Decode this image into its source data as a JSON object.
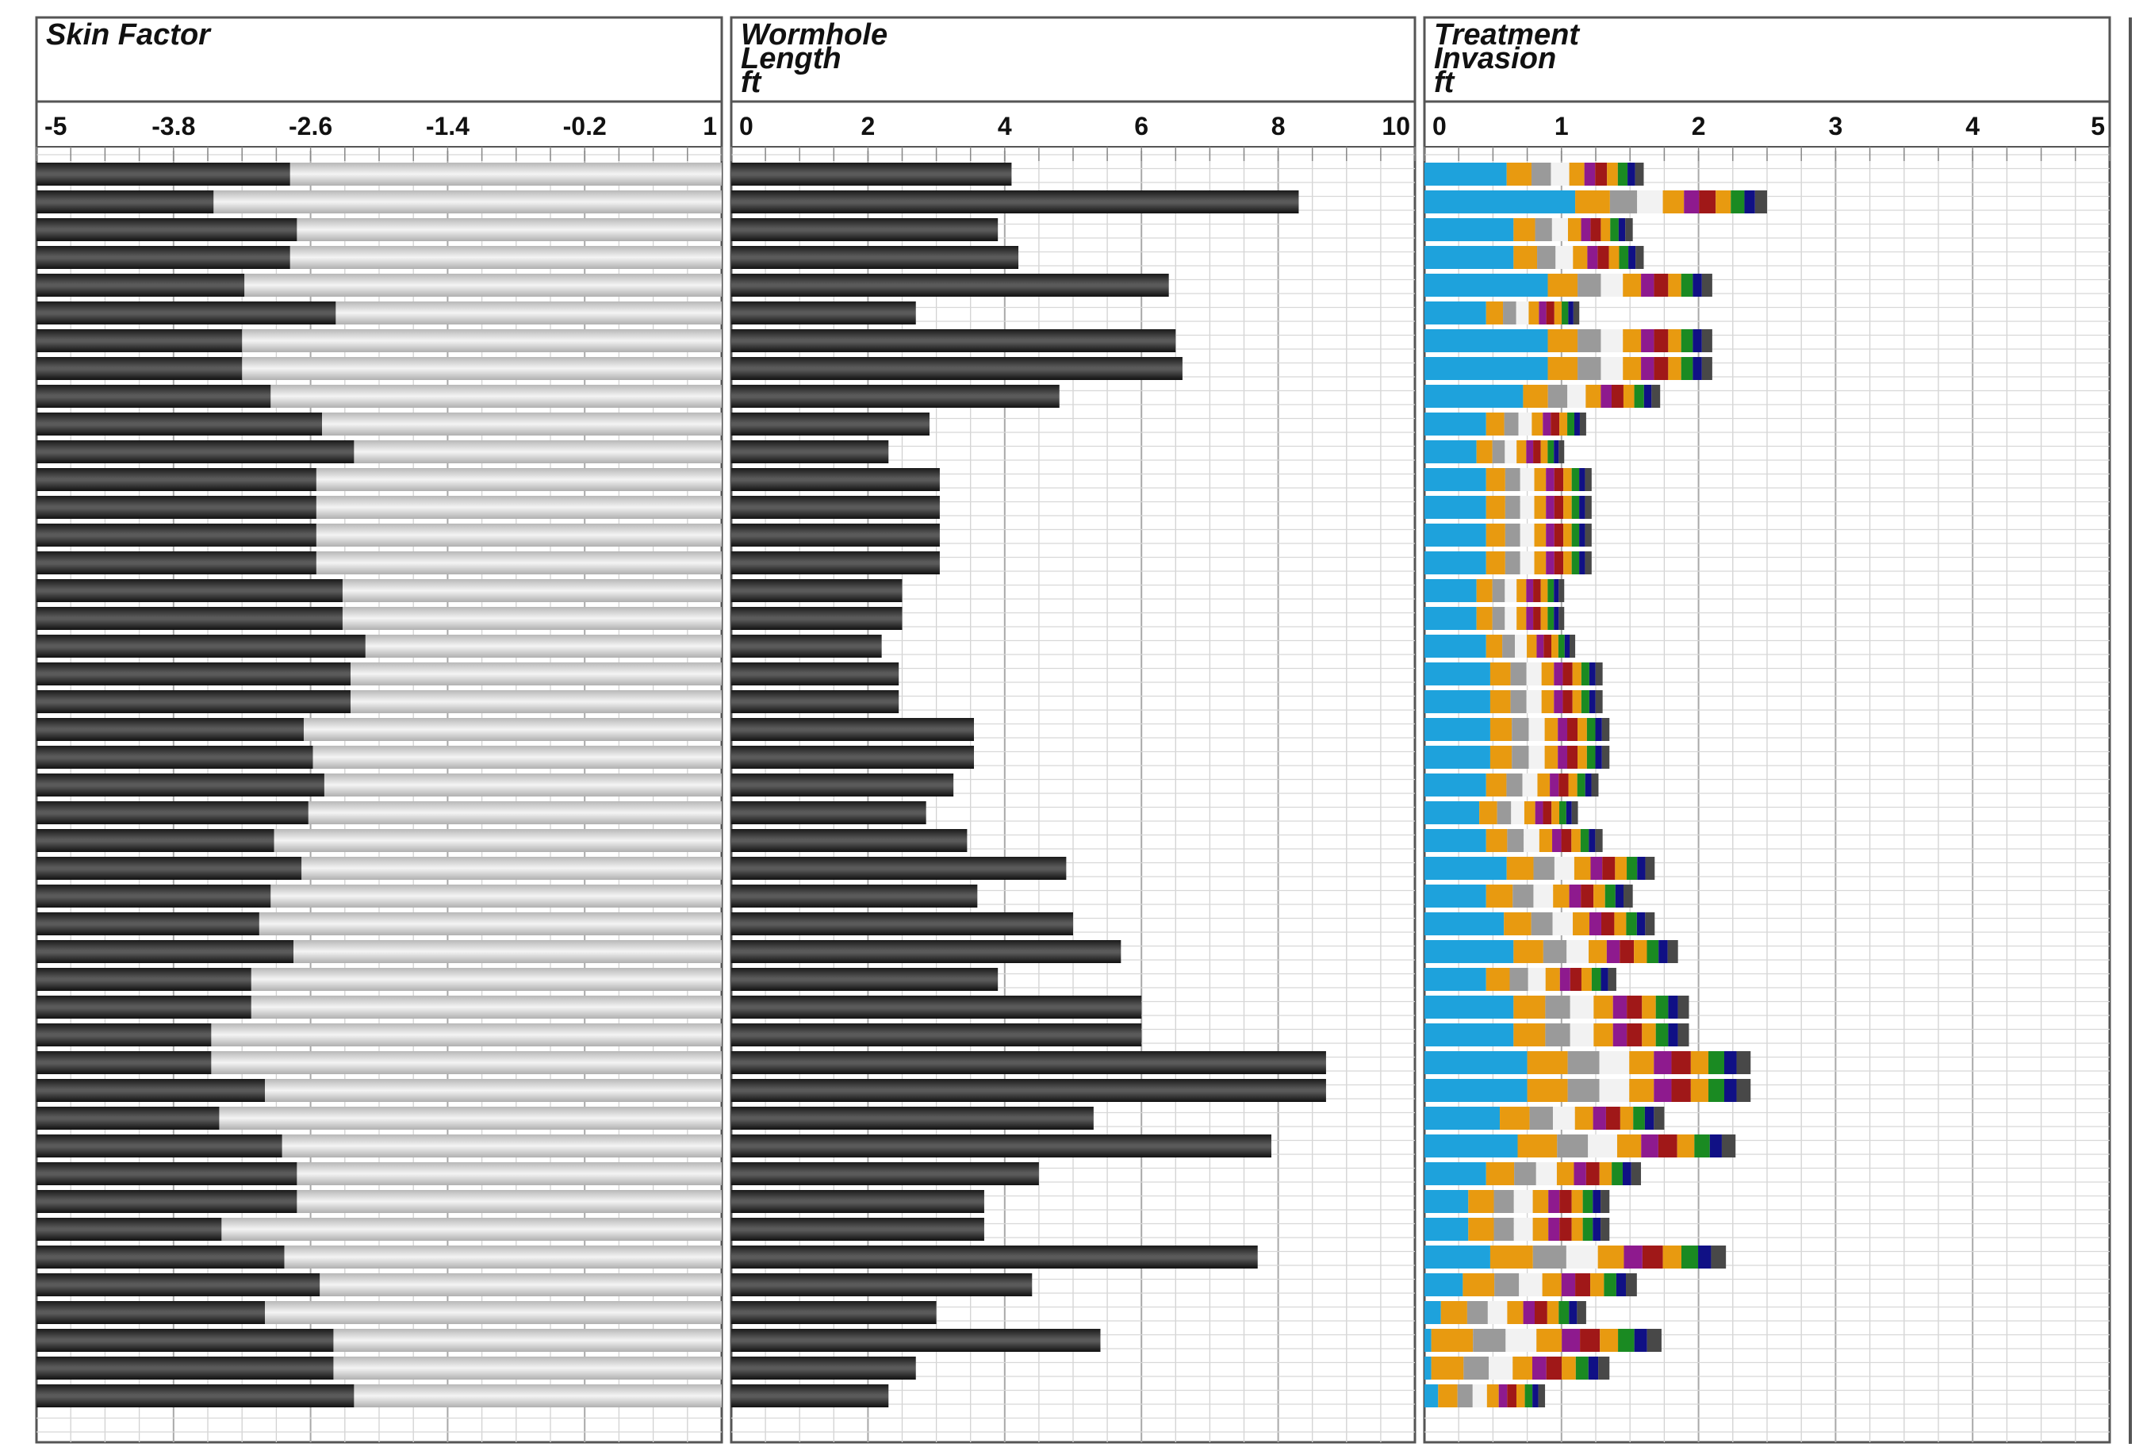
{
  "chart_data": [
    {
      "type": "bar",
      "orientation": "horizontal",
      "title_lines": [
        "Skin Factor"
      ],
      "xlim": [
        -5,
        1
      ],
      "ticks": [
        -5,
        -3.8,
        -2.6,
        -1.4,
        -0.2,
        1
      ],
      "tick_labels": [
        "-5",
        "-3.8",
        "-2.6",
        "-1.4",
        "-0.2",
        "1"
      ],
      "bar_color": "#2a2a2a",
      "background_fill_color": "#d4d4d4",
      "values": [
        -2.78,
        -3.45,
        -2.72,
        -2.78,
        -3.18,
        -2.38,
        -3.2,
        -3.2,
        -2.95,
        -2.5,
        -2.22,
        -2.55,
        -2.55,
        -2.55,
        -2.55,
        -2.32,
        -2.32,
        -2.12,
        -2.25,
        -2.25,
        -2.66,
        -2.58,
        -2.48,
        -2.62,
        -2.92,
        -2.68,
        -2.95,
        -3.05,
        -2.75,
        -3.12,
        -3.12,
        -3.47,
        -3.47,
        -3.0,
        -3.4,
        -2.85,
        -2.72,
        -2.72,
        -3.38,
        -2.83,
        -2.52,
        -3.0,
        -2.4,
        -2.4,
        -2.22
      ]
    },
    {
      "type": "bar",
      "orientation": "horizontal",
      "title_lines": [
        "Wormhole",
        "Length",
        "ft"
      ],
      "xlim": [
        0,
        10
      ],
      "ticks": [
        0,
        2,
        4,
        6,
        8,
        10
      ],
      "tick_labels": [
        "0",
        "2",
        "4",
        "6",
        "8",
        "10"
      ],
      "bar_color": "#2a2a2a",
      "values": [
        4.1,
        8.3,
        3.9,
        4.2,
        6.4,
        2.7,
        6.5,
        6.6,
        4.8,
        2.9,
        2.3,
        3.05,
        3.05,
        3.05,
        3.05,
        2.5,
        2.5,
        2.2,
        2.45,
        2.45,
        3.55,
        3.55,
        3.25,
        2.85,
        3.45,
        4.9,
        3.6,
        5.0,
        5.7,
        3.9,
        6.0,
        6.0,
        8.7,
        8.7,
        5.3,
        7.9,
        4.5,
        3.7,
        3.7,
        7.7,
        4.4,
        3.0,
        5.4,
        2.7,
        2.3
      ]
    },
    {
      "type": "bar",
      "stacked": true,
      "orientation": "horizontal",
      "title_lines": [
        "Treatment",
        "Invasion",
        "ft"
      ],
      "xlim": [
        0,
        5
      ],
      "ticks": [
        0,
        1,
        2,
        3,
        4,
        5
      ],
      "tick_labels": [
        "0",
        "1",
        "2",
        "3",
        "4",
        "5"
      ],
      "segment_colors": [
        "#1ea2dc",
        "#e89a10",
        "#9a9a9a",
        "#f2f2f2",
        "#e89a10",
        "#8e1a8e",
        "#a01818",
        "#e89a10",
        "#1a8a22",
        "#101085",
        "#484848"
      ],
      "totals": [
        1.6,
        2.5,
        1.52,
        1.6,
        2.1,
        1.13,
        2.1,
        2.1,
        1.72,
        1.18,
        1.02,
        1.22,
        1.22,
        1.22,
        1.22,
        1.02,
        1.02,
        1.1,
        1.3,
        1.3,
        1.35,
        1.35,
        1.27,
        1.12,
        1.3,
        1.68,
        1.52,
        1.68,
        1.85,
        1.4,
        1.93,
        1.93,
        2.38,
        2.38,
        1.75,
        2.27,
        1.58,
        1.35,
        1.35,
        2.2,
        1.55,
        1.18,
        1.73,
        1.35,
        0.88
      ],
      "base_values": [
        0.6,
        1.1,
        0.65,
        0.65,
        0.9,
        0.45,
        0.9,
        0.9,
        0.72,
        0.45,
        0.38,
        0.45,
        0.45,
        0.45,
        0.45,
        0.38,
        0.38,
        0.45,
        0.48,
        0.48,
        0.48,
        0.48,
        0.45,
        0.4,
        0.45,
        0.6,
        0.45,
        0.58,
        0.65,
        0.45,
        0.65,
        0.65,
        0.75,
        0.75,
        0.55,
        0.68,
        0.45,
        0.32,
        0.32,
        0.48,
        0.28,
        0.12,
        0.05,
        0.05,
        0.1
      ]
    }
  ]
}
